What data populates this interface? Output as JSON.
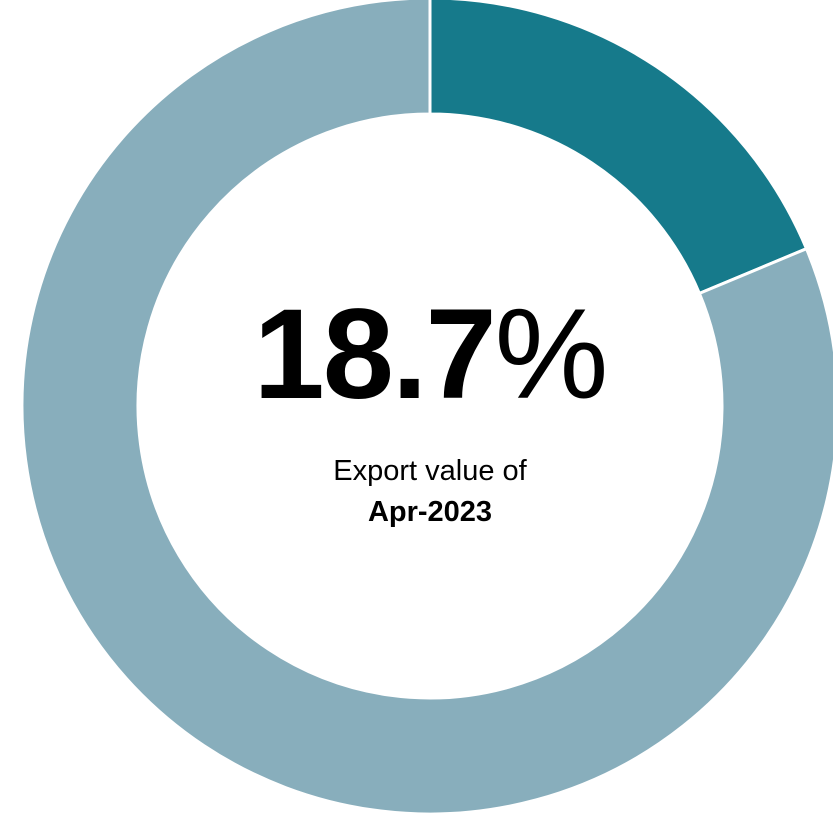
{
  "chart_data": {
    "type": "pie",
    "style": "donut",
    "slices": [
      {
        "value": 18.7,
        "color": "#167A8B"
      },
      {
        "value": 81.3,
        "color": "#88AEBC"
      }
    ],
    "center": {
      "value_number": "18.7",
      "value_unit": "%",
      "caption": "Export value of",
      "period": "Apr-2023"
    },
    "legend": "none"
  }
}
